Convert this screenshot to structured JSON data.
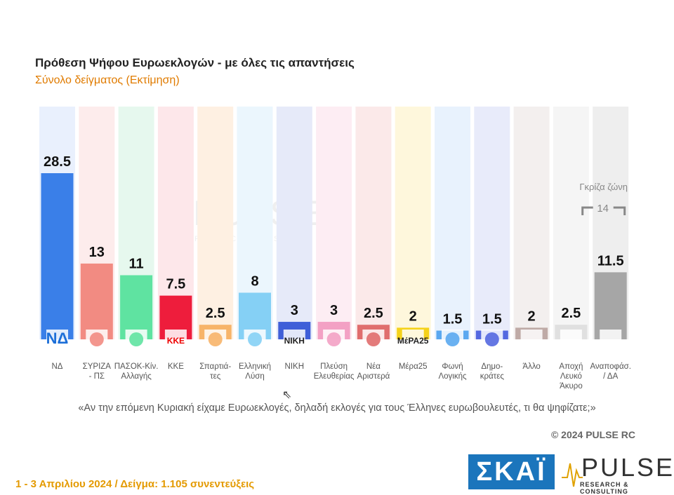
{
  "title": "Πρόθεση Ψήφου Ευρωεκλογών - με όλες τις απαντήσεις",
  "subtitle": "Σύνολο δείγματος   (Εκτίμηση)",
  "chart_data": {
    "type": "bar",
    "categories": [
      [
        "ΝΔ"
      ],
      [
        "ΣΥΡΙΖΑ",
        "- ΠΣ"
      ],
      [
        "ΠΑΣΟΚ-Κίν.",
        "Αλλαγής"
      ],
      [
        "ΚΚΕ"
      ],
      [
        "Σπαρτιά-",
        "τες"
      ],
      [
        "Ελληνική",
        "Λύση"
      ],
      [
        "ΝΙΚΗ"
      ],
      [
        "Πλεύση",
        "Ελευθερίας"
      ],
      [
        "Νέα",
        "Αριστερά"
      ],
      [
        "Μέρα25"
      ],
      [
        "Φωνή",
        "Λογικής"
      ],
      [
        "Δημο-",
        "κράτες"
      ],
      [
        "Άλλο"
      ],
      [
        "Αποχή",
        "Λευκό",
        "Άκυρο"
      ],
      [
        "Αναποφάσ.",
        "/ ΔΑ"
      ]
    ],
    "values": [
      28.5,
      13,
      11,
      7.5,
      2.5,
      8,
      3,
      3,
      2.5,
      2,
      1.5,
      1.5,
      2,
      2.5,
      11.5
    ],
    "value_labels": [
      "28.5",
      "13",
      "11",
      "7.5",
      "2.5",
      "8",
      "3",
      "3",
      "2.5",
      "2",
      "1.5",
      "1.5",
      "2",
      "2.5",
      "11.5"
    ],
    "colors": [
      "#3a7fe8",
      "#f28b82",
      "#5fe3a1",
      "#ee1d3c",
      "#f7b469",
      "#85d0f5",
      "#3f5fd8",
      "#f3a1c4",
      "#e06d6d",
      "#f5d21a",
      "#5aa8f0",
      "#5468e0",
      "#bfaaa6",
      "#e0e0e0",
      "#a6a6a6"
    ],
    "backgrounds": [
      "#e9f0fd",
      "#fdecec",
      "#e6f8ee",
      "#fde7ea",
      "#fef0e2",
      "#ebf6fd",
      "#e6eaf9",
      "#fdedf3",
      "#fbe9e9",
      "#fef7dc",
      "#e8f2fd",
      "#e8ebfa",
      "#f3efee",
      "#f5f5f5",
      "#eeeeee"
    ],
    "logo_texts": [
      "ΝΔ",
      "",
      "",
      "ΚΚΕ",
      "",
      "",
      "ΝΙΚΗ",
      "",
      "",
      "ΜέΡΑ25",
      "",
      "",
      "",
      "",
      ""
    ],
    "ylim": [
      0,
      30
    ],
    "annotation": {
      "label": "Γκρίζα ζώνη",
      "value": "14"
    }
  },
  "question": "«Αν την επόμενη Κυριακή είχαμε Ευρωεκλογές, δηλαδή εκλογές για τους Έλληνες ευρωβουλευτές, τι θα ψηφίζατε;»",
  "copyright": "© 2024 PULSE RC",
  "footer": "1 - 3  Απριλίου 2024  /  Δείγμα:  1.105 συνεντεύξεις",
  "logos": {
    "skai": "ΣΚΑΪ",
    "pulse": "PULSE",
    "pulse_tagline": "RESEARCH & CONSULTING"
  }
}
